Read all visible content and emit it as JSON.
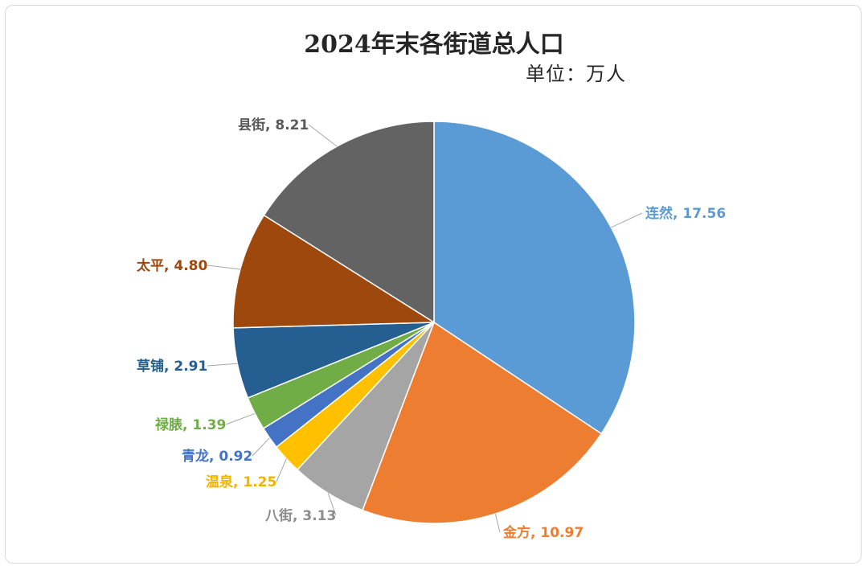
{
  "chart_data": {
    "type": "pie",
    "title": "2024年末各街道总人口",
    "unit_note": "单位：万人",
    "slices": [
      {
        "name": "连然",
        "value": 17.56,
        "value_label": "17.56",
        "color": "#5b9bd5",
        "label_color": "#5b9bd5"
      },
      {
        "name": "金方",
        "value": 10.97,
        "value_label": "10.97",
        "color": "#ed7d31",
        "label_color": "#ed7d31"
      },
      {
        "name": "八街",
        "value": 3.13,
        "value_label": "3.13",
        "color": "#a5a5a5",
        "label_color": "#8c8c8c"
      },
      {
        "name": "温泉",
        "value": 1.25,
        "value_label": "1.25",
        "color": "#ffc000",
        "label_color": "#f0b400"
      },
      {
        "name": "青龙",
        "value": 0.92,
        "value_label": "0.92",
        "color": "#4472c4",
        "label_color": "#4472c4"
      },
      {
        "name": "禄脿",
        "value": 1.39,
        "value_label": "1.39",
        "color": "#70ad47",
        "label_color": "#70ad47"
      },
      {
        "name": "草铺",
        "value": 2.91,
        "value_label": "2.91",
        "color": "#255e91",
        "label_color": "#255e91"
      },
      {
        "name": "太平",
        "value": 4.8,
        "value_label": "4.80",
        "color": "#9e480e",
        "label_color": "#9e480e"
      },
      {
        "name": "县街",
        "value": 8.21,
        "value_label": "8.21",
        "color": "#636363",
        "label_color": "#595959"
      }
    ],
    "data_labels": "category, value",
    "legend": "none",
    "start_angle": "12 o'clock, clockwise"
  }
}
